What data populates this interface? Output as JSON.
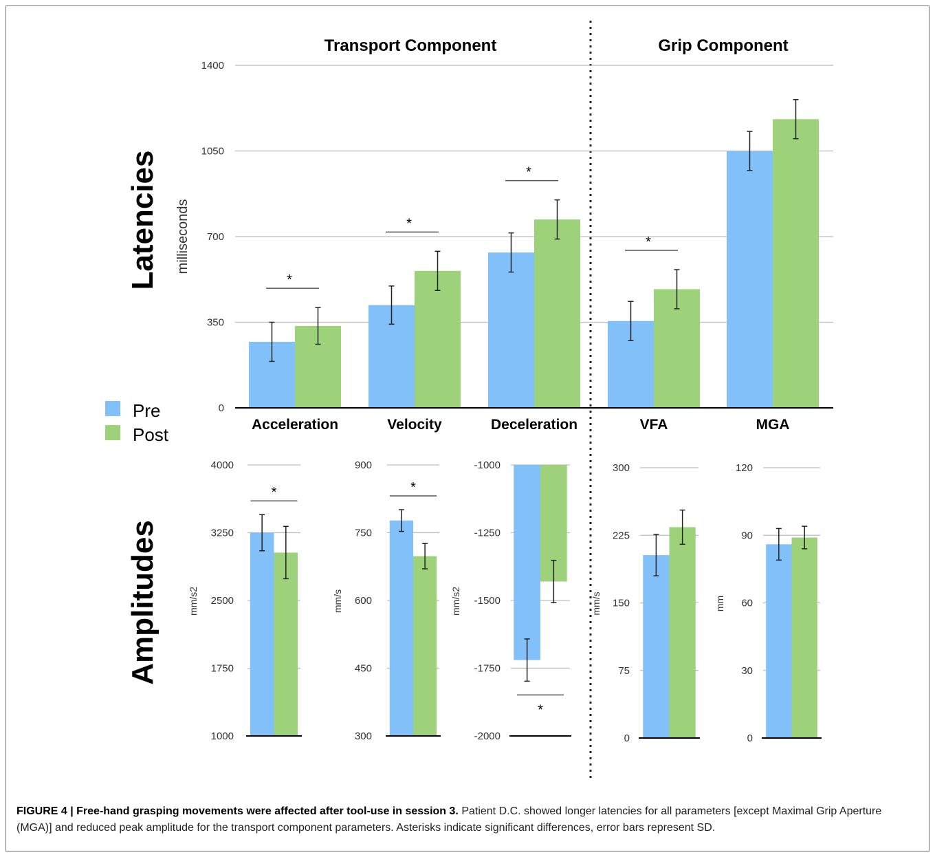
{
  "colors": {
    "pre": "#82c0fa",
    "post": "#9dd27a",
    "grid": "#bdbdbd",
    "axis": "#000000"
  },
  "section_titles": {
    "transport": "Transport Component",
    "grip": "Grip Component"
  },
  "row_labels": {
    "latencies": "Latencies",
    "amplitudes": "Amplitudes"
  },
  "legend": {
    "pre": "Pre",
    "post": "Post"
  },
  "significance_marker": "*",
  "chart_data": [
    {
      "type": "bar",
      "title": "Latencies",
      "ylabel": "milliseconds",
      "categories": [
        "Acceleration",
        "Velocity",
        "Deceleration",
        "VFA",
        "MGA"
      ],
      "ylim": [
        0,
        1400
      ],
      "yticks": [
        "0",
        "350",
        "700",
        "1050",
        "1400"
      ],
      "series": [
        {
          "name": "Pre",
          "values": [
            270,
            420,
            635,
            355,
            1050
          ],
          "sd": [
            80,
            78,
            80,
            80,
            80
          ]
        },
        {
          "name": "Post",
          "values": [
            335,
            560,
            770,
            485,
            1180
          ],
          "sd": [
            75,
            80,
            80,
            80,
            80
          ]
        }
      ],
      "significant": [
        true,
        true,
        true,
        true,
        false
      ]
    },
    {
      "type": "bar",
      "category": "Acceleration",
      "ylabel": "mm/s2",
      "ylim": [
        1000,
        4000
      ],
      "yticks": [
        "1000",
        "1750",
        "2500",
        "3250",
        "4000"
      ],
      "series": [
        {
          "name": "Pre",
          "value": 3250,
          "sd": 200
        },
        {
          "name": "Post",
          "value": 3030,
          "sd": 290
        }
      ],
      "significant": true,
      "marker_position": "top"
    },
    {
      "type": "bar",
      "category": "Velocity",
      "ylabel": "mm/s",
      "ylim": [
        300,
        900
      ],
      "yticks": [
        "300",
        "450",
        "600",
        "750",
        "900"
      ],
      "series": [
        {
          "name": "Pre",
          "value": 777,
          "sd": 24
        },
        {
          "name": "Post",
          "value": 698,
          "sd": 28
        }
      ],
      "significant": true,
      "marker_position": "top"
    },
    {
      "type": "bar",
      "category": "Deceleration",
      "ylabel": "mm/s2",
      "ylim": [
        -2000,
        -1000
      ],
      "yticks": [
        "-2000",
        "-1750",
        "-1500",
        "-1250",
        "-1000"
      ],
      "series": [
        {
          "name": "Pre",
          "value": -1720,
          "sd": 78
        },
        {
          "name": "Post",
          "value": -1430,
          "sd": 78
        }
      ],
      "significant": true,
      "marker_position": "bottom"
    },
    {
      "type": "bar",
      "category": "VFA",
      "ylabel": "mm/s",
      "ylim": [
        0,
        300
      ],
      "yticks": [
        "0",
        "75",
        "150",
        "225",
        "300"
      ],
      "series": [
        {
          "name": "Pre",
          "value": 203,
          "sd": 23
        },
        {
          "name": "Post",
          "value": 234,
          "sd": 19
        }
      ],
      "significant": false
    },
    {
      "type": "bar",
      "category": "MGA",
      "ylabel": "mm",
      "ylim": [
        0,
        120
      ],
      "yticks": [
        "0",
        "30",
        "60",
        "90",
        "120"
      ],
      "series": [
        {
          "name": "Pre",
          "value": 86,
          "sd": 7
        },
        {
          "name": "Post",
          "value": 89,
          "sd": 5
        }
      ],
      "significant": false
    }
  ],
  "caption": {
    "label": "FIGURE 4 | Free-hand grasping movements were affected after tool-use in session 3.",
    "text": "Patient D.C. showed longer latencies for all parameters [except Maximal Grip Aperture (MGA)] and reduced peak amplitude for the transport component parameters. Asterisks indicate significant differences, error bars represent SD."
  }
}
